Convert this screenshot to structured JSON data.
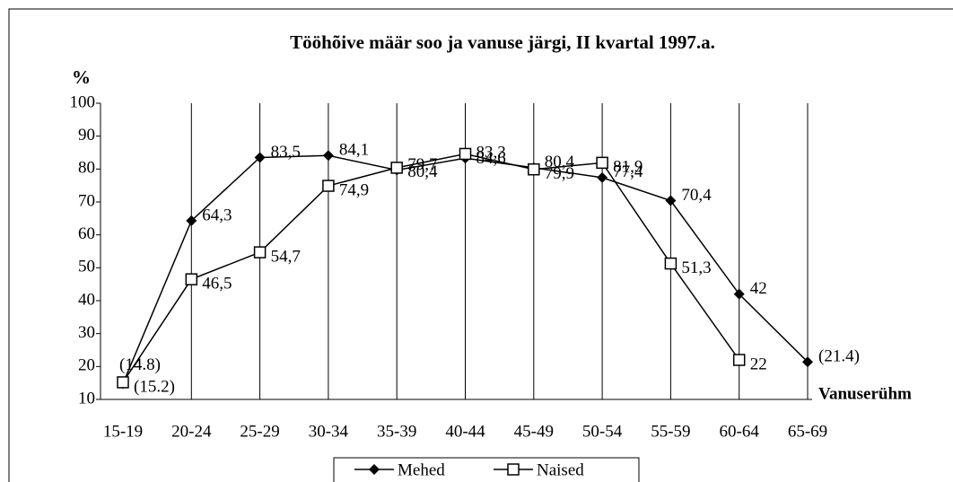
{
  "chart_data": {
    "type": "line",
    "title": "Tööhõive määr soo ja vanuse järgi, II kvartal 1997.a.",
    "y_label": "%",
    "x_label": "Vanuserühm",
    "categories": [
      "15-19",
      "20-24",
      "25-29",
      "30-34",
      "35-39",
      "40-44",
      "45-49",
      "50-54",
      "55-59",
      "60-64",
      "65-69"
    ],
    "series": [
      {
        "name": "Mehed",
        "color": "#000000",
        "marker": "diamond",
        "values": [
          14.8,
          64.3,
          83.5,
          84.1,
          79.7,
          83.3,
          80.4,
          77.4,
          70.4,
          42,
          21.4
        ],
        "value_labels": [
          "(14.8)",
          "64,3",
          "83,5",
          "84,1",
          "79,7",
          "83,3",
          "80,4",
          "77,4",
          "70,4",
          "42",
          "(21.4)"
        ]
      },
      {
        "name": "Naised",
        "color": "#000000",
        "marker": "square",
        "values": [
          15.2,
          46.5,
          54.7,
          74.9,
          80.4,
          84.6,
          79.9,
          81.9,
          51.3,
          22,
          null
        ],
        "value_labels": [
          "(15.2)",
          "46,5",
          "54,7",
          "74,9",
          "80,4",
          "84,6",
          "79,9",
          "81,9",
          "51,3",
          "22",
          null
        ]
      }
    ],
    "ylim": [
      10,
      100
    ],
    "yticks": [
      10,
      20,
      30,
      40,
      50,
      60,
      70,
      80,
      90,
      100
    ],
    "grid": "vertical",
    "legend": "bottom"
  }
}
